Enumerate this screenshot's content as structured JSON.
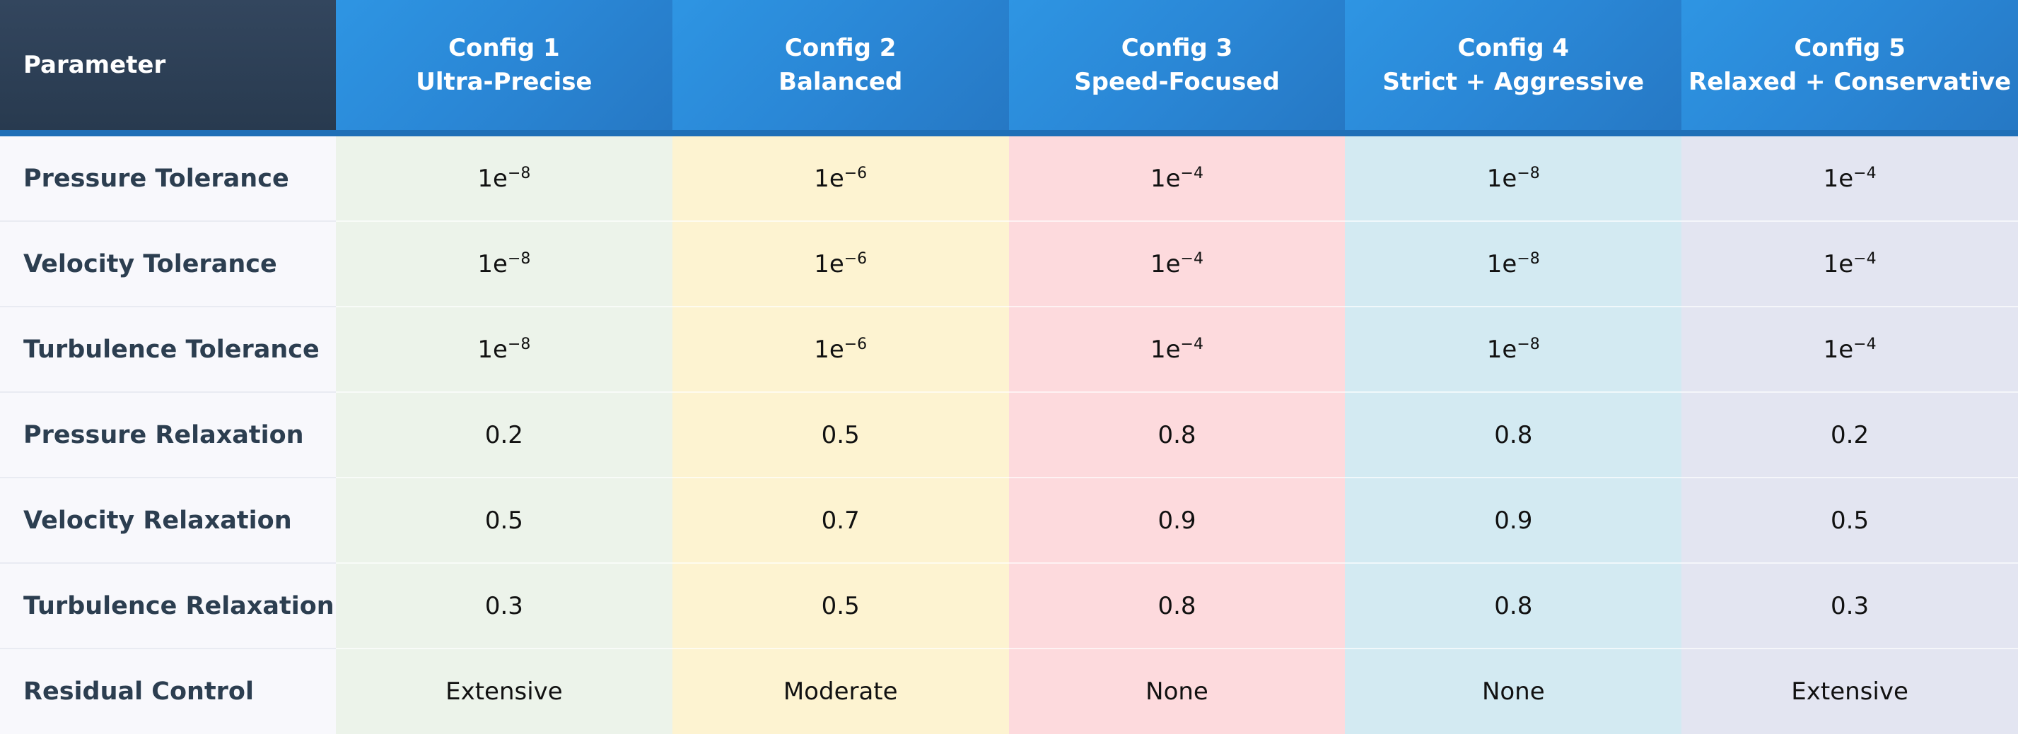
{
  "table": {
    "header": {
      "parameter": "Parameter",
      "configs": [
        {
          "name": "Config 1",
          "subtitle": "Ultra-Precise"
        },
        {
          "name": "Config 2",
          "subtitle": "Balanced"
        },
        {
          "name": "Config 3",
          "subtitle": "Speed-Focused"
        },
        {
          "name": "Config 4",
          "subtitle": "Strict + Aggressive"
        },
        {
          "name": "Config 5",
          "subtitle": "Relaxed + Conservative"
        }
      ]
    },
    "rows": [
      {
        "label": "Pressure Tolerance",
        "values": [
          {
            "b": "1e",
            "e": "−8"
          },
          {
            "b": "1e",
            "e": "−6"
          },
          {
            "b": "1e",
            "e": "−4"
          },
          {
            "b": "1e",
            "e": "−8"
          },
          {
            "b": "1e",
            "e": "−4"
          }
        ]
      },
      {
        "label": "Velocity Tolerance",
        "values": [
          {
            "b": "1e",
            "e": "−8"
          },
          {
            "b": "1e",
            "e": "−6"
          },
          {
            "b": "1e",
            "e": "−4"
          },
          {
            "b": "1e",
            "e": "−8"
          },
          {
            "b": "1e",
            "e": "−4"
          }
        ]
      },
      {
        "label": "Turbulence Tolerance",
        "values": [
          {
            "b": "1e",
            "e": "−8"
          },
          {
            "b": "1e",
            "e": "−6"
          },
          {
            "b": "1e",
            "e": "−4"
          },
          {
            "b": "1e",
            "e": "−8"
          },
          {
            "b": "1e",
            "e": "−4"
          }
        ]
      },
      {
        "label": "Pressure Relaxation",
        "values": [
          "0.2",
          "0.5",
          "0.8",
          "0.8",
          "0.2"
        ]
      },
      {
        "label": "Velocity Relaxation",
        "values": [
          "0.5",
          "0.7",
          "0.9",
          "0.9",
          "0.5"
        ]
      },
      {
        "label": "Turbulence Relaxation",
        "values": [
          "0.3",
          "0.5",
          "0.8",
          "0.8",
          "0.3"
        ]
      },
      {
        "label": "Residual Control",
        "values": [
          "Extensive",
          "Moderate",
          "None",
          "None",
          "Extensive"
        ]
      }
    ],
    "column_colors": [
      "#ecf3ea",
      "#fdf3d1",
      "#fddadd",
      "#d3eaf2",
      "#e3e5f1"
    ],
    "header_color": "#2a87d6",
    "parameter_header_color": "#2f4259"
  }
}
